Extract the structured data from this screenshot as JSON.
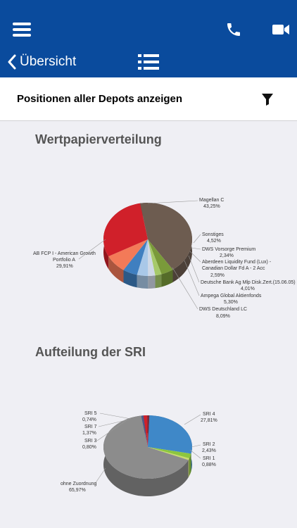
{
  "header": {
    "back_label": "Übersicht",
    "menu_icon": "hamburger-menu-icon",
    "phone_icon": "phone-icon",
    "video_icon": "video-camera-icon",
    "list_icon": "list-icon",
    "colors": {
      "primary": "#0a4b9d",
      "background": "#efeff4"
    }
  },
  "subheader": {
    "title": "Positionen aller Depots anzeigen",
    "filter_icon": "filter-funnel-icon"
  },
  "sections": {
    "distribution_title": "Wertpapierverteilung",
    "sri_title": "Aufteilung der SRI"
  },
  "chart_data": [
    {
      "type": "pie",
      "title": "Wertpapierverteilung",
      "slices": [
        {
          "name": "Magellan C",
          "value": 43.25,
          "label": "43,25%",
          "color": "#6d5c50"
        },
        {
          "name": "Sonstiges",
          "value": 4.52,
          "label": "4,52%",
          "color": "#7a9a3a"
        },
        {
          "name": "DWS Vorsorge Premium",
          "value": 2.34,
          "label": "2,34%",
          "color": "#a6c96a"
        },
        {
          "name": "Aberdeen Liquidity Fund (Lux) - Canadian Dollar Fd A - 2 Acc",
          "value": 2.59,
          "label": "2,59%",
          "color": "#cfd8e6"
        },
        {
          "name": "Deutsche Bank Ag Mlp Disk.Zert.(15.06.05)",
          "value": 4.01,
          "label": "4,01%",
          "color": "#a9c8e8"
        },
        {
          "name": "Ampega Global Aktienfonds",
          "value": 5.3,
          "label": "5,30%",
          "color": "#3f7fc0"
        },
        {
          "name": "DWS Deutschland LC",
          "value": 8.09,
          "label": "8,09%",
          "color": "#f37a58"
        },
        {
          "name": "AB FCP I - American Growth Portfolio A",
          "value": 29.91,
          "label": "29,91%",
          "color": "#d0202a"
        }
      ]
    },
    {
      "type": "pie",
      "title": "Aufteilung der SRI",
      "slices": [
        {
          "name": "SRI 4",
          "value": 27.81,
          "label": "27,81%",
          "color": "#3f88c8"
        },
        {
          "name": "SRI 2",
          "value": 2.43,
          "label": "2,43%",
          "color": "#8cc63f"
        },
        {
          "name": "SRI 1",
          "value": 0.88,
          "label": "0,88%",
          "color": "#c9dc6a"
        },
        {
          "name": "ohne Zuordnung",
          "value": 65.97,
          "label": "65,97%",
          "color": "#8c8c8c"
        },
        {
          "name": "SRI 3",
          "value": 0.8,
          "label": "0,80%",
          "color": "#4e5a8a"
        },
        {
          "name": "SRI 7",
          "value": 1.37,
          "label": "1,37%",
          "color": "#d0202a"
        },
        {
          "name": "SRI 5",
          "value": 0.74,
          "label": "0,74%",
          "color": "#7a2a3a"
        }
      ]
    }
  ]
}
